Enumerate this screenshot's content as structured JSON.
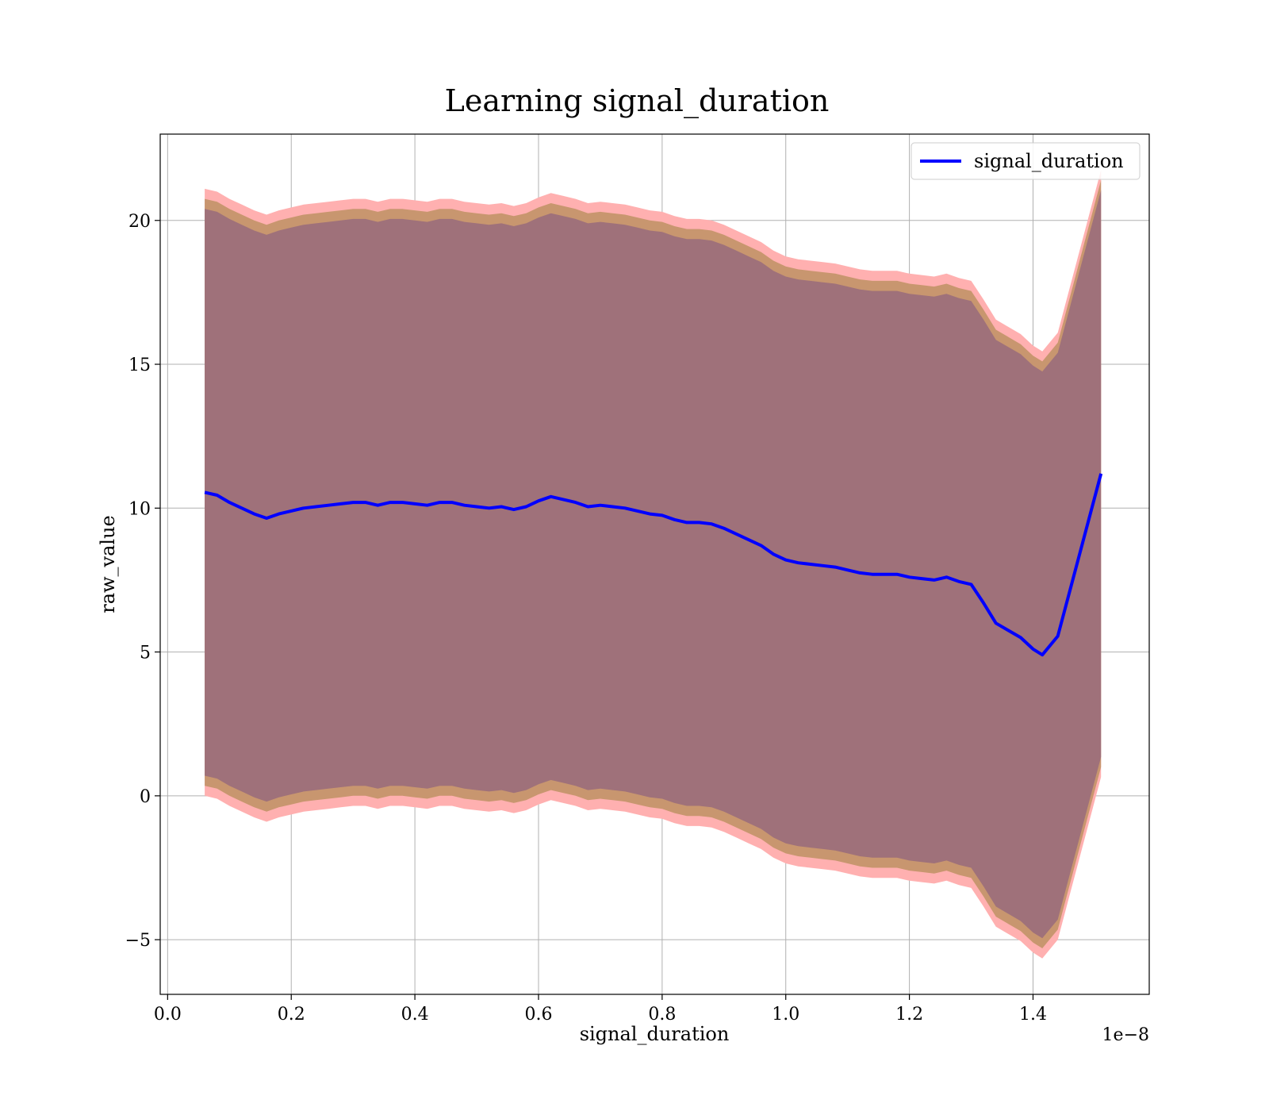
{
  "chart_data": {
    "type": "line",
    "title": "Learning signal_duration",
    "xlabel": "signal_duration",
    "ylabel": "raw_value",
    "x_offset_label": "1e−8",
    "xlim": [
      -0.012,
      1.588
    ],
    "ylim": [
      -6.9,
      23.0
    ],
    "x_ticks": [
      0.0,
      0.2,
      0.4,
      0.6,
      0.8,
      1.0,
      1.2,
      1.4
    ],
    "x_tick_labels": [
      "0.0",
      "0.2",
      "0.4",
      "0.6",
      "0.8",
      "1.0",
      "1.2",
      "1.4"
    ],
    "y_ticks": [
      -5,
      0,
      5,
      10,
      15,
      20
    ],
    "y_tick_labels": [
      "−5",
      "0",
      "5",
      "10",
      "15",
      "20"
    ],
    "grid": true,
    "legend_position": "top-right",
    "colors": {
      "line": "#0000ff",
      "band_inner": "#9f717a",
      "band_middle": "#c8966f",
      "band_outer": "#ffb0b0",
      "grid": "#b0b0b0"
    },
    "series": [
      {
        "name": "signal_duration",
        "x": [
          0.06,
          0.08,
          0.1,
          0.12,
          0.14,
          0.16,
          0.18,
          0.2,
          0.22,
          0.24,
          0.26,
          0.28,
          0.3,
          0.32,
          0.34,
          0.36,
          0.38,
          0.4,
          0.42,
          0.44,
          0.46,
          0.48,
          0.5,
          0.52,
          0.54,
          0.56,
          0.58,
          0.6,
          0.62,
          0.64,
          0.66,
          0.68,
          0.7,
          0.72,
          0.74,
          0.76,
          0.78,
          0.8,
          0.82,
          0.84,
          0.86,
          0.88,
          0.9,
          0.92,
          0.94,
          0.96,
          0.98,
          1.0,
          1.02,
          1.04,
          1.06,
          1.08,
          1.1,
          1.12,
          1.14,
          1.16,
          1.18,
          1.2,
          1.22,
          1.24,
          1.26,
          1.28,
          1.3,
          1.32,
          1.34,
          1.36,
          1.38,
          1.4,
          1.415,
          1.44,
          1.51
        ],
        "y": [
          10.55,
          10.45,
          10.2,
          10.0,
          9.8,
          9.65,
          9.8,
          9.9,
          10.0,
          10.05,
          10.1,
          10.15,
          10.2,
          10.2,
          10.1,
          10.2,
          10.2,
          10.15,
          10.1,
          10.2,
          10.2,
          10.1,
          10.05,
          10.0,
          10.05,
          9.95,
          10.05,
          10.25,
          10.4,
          10.3,
          10.2,
          10.05,
          10.1,
          10.05,
          10.0,
          9.9,
          9.8,
          9.75,
          9.6,
          9.5,
          9.5,
          9.45,
          9.3,
          9.1,
          8.9,
          8.7,
          8.4,
          8.2,
          8.1,
          8.05,
          8.0,
          7.95,
          7.85,
          7.75,
          7.7,
          7.7,
          7.7,
          7.6,
          7.55,
          7.5,
          7.6,
          7.45,
          7.35,
          6.7,
          6.0,
          5.75,
          5.5,
          5.1,
          4.9,
          5.55,
          11.2
        ],
        "band_half_widths": {
          "inner": 9.85,
          "middle": 10.2,
          "outer": 10.55
        }
      }
    ]
  }
}
